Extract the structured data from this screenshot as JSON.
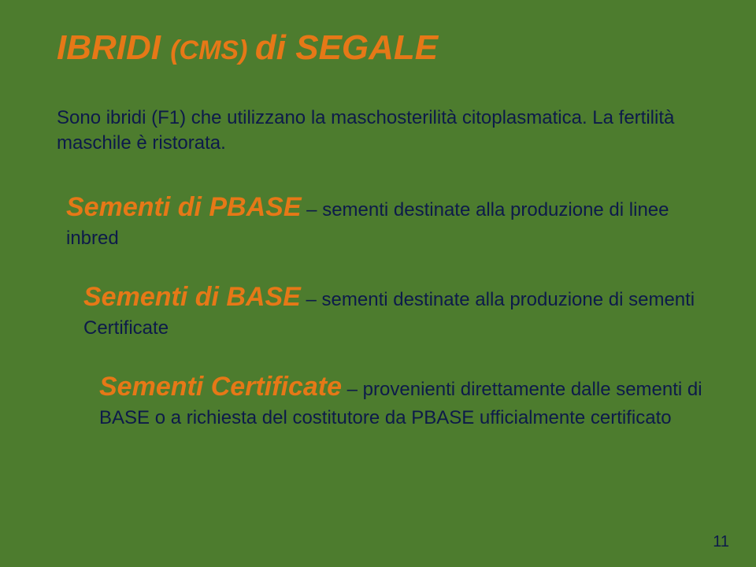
{
  "colors": {
    "background": "#4d7c2e",
    "accent": "#e67817",
    "body_text": "#0d1a4a"
  },
  "typography": {
    "title_fontsize": 44,
    "title_sub_fontsize": 34,
    "heading_fontsize": 34,
    "body_fontsize": 24,
    "font_family": "Tahoma, Verdana, Arial, sans-serif",
    "title_style": "bold italic",
    "heading_style": "bold italic"
  },
  "title": {
    "part1": "IBRIDI ",
    "cms": " (CMS) ",
    "part2": "di SEGALE"
  },
  "intro": "Sono ibridi (F1) che utilizzano la maschosterilità citoplasmatica. La fertilità maschile è ristorata.",
  "items": [
    {
      "heading": "Sementi di PBASE",
      "body": " – sementi destinate alla produzione di linee inbred"
    },
    {
      "heading": "Sementi di BASE",
      "body": " – sementi destinate alla produzione di sementi Certificate"
    },
    {
      "heading": "Sementi Certificate",
      "body": " – provenienti direttamente dalle sementi di BASE  o a richiesta del costitutore da PBASE ufficialmente certificato"
    }
  ],
  "page_number": "11"
}
